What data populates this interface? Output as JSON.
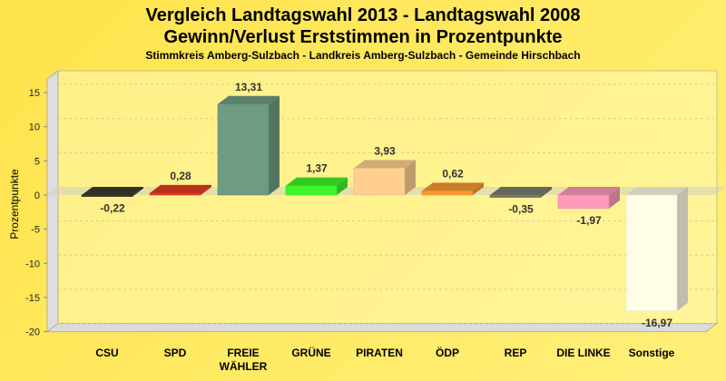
{
  "chart_data": {
    "type": "bar",
    "title": "Vergleich Landtagswahl 2013 - Landtagswahl 2008",
    "subtitle": "Gewinn/Verlust Erststimmen in Prozentpunkte",
    "subtitle2": "Stimmkreis Amberg-Sulzbach - Landkreis Amberg-Sulzbach - Gemeinde Hirschbach",
    "xlabel": "",
    "ylabel": "Prozentpunkte",
    "ylim": [
      -20,
      17
    ],
    "yticks": [
      15,
      10,
      5,
      0,
      -5,
      -10,
      -15,
      -20
    ],
    "grid": true,
    "categories": [
      "CSU",
      "SPD",
      "FREIE WÄHLER",
      "GRÜNE",
      "PIRATEN",
      "ÖDP",
      "REP",
      "DIE LINKE",
      "Sonstige"
    ],
    "values": [
      -0.22,
      0.28,
      13.31,
      1.37,
      3.93,
      0.62,
      -0.35,
      -1.97,
      -16.97
    ],
    "labels": [
      "-0,22",
      "0,28",
      "13,31",
      "1,37",
      "3,93",
      "0,62",
      "-0,35",
      "-1,97",
      "-16,97"
    ],
    "colors": [
      "#3a3a2c",
      "#e23a22",
      "#6f9c80",
      "#3ef52a",
      "#ffcf90",
      "#f89a30",
      "#7c7c6e",
      "#ff9abb",
      "#fffde6"
    ]
  }
}
